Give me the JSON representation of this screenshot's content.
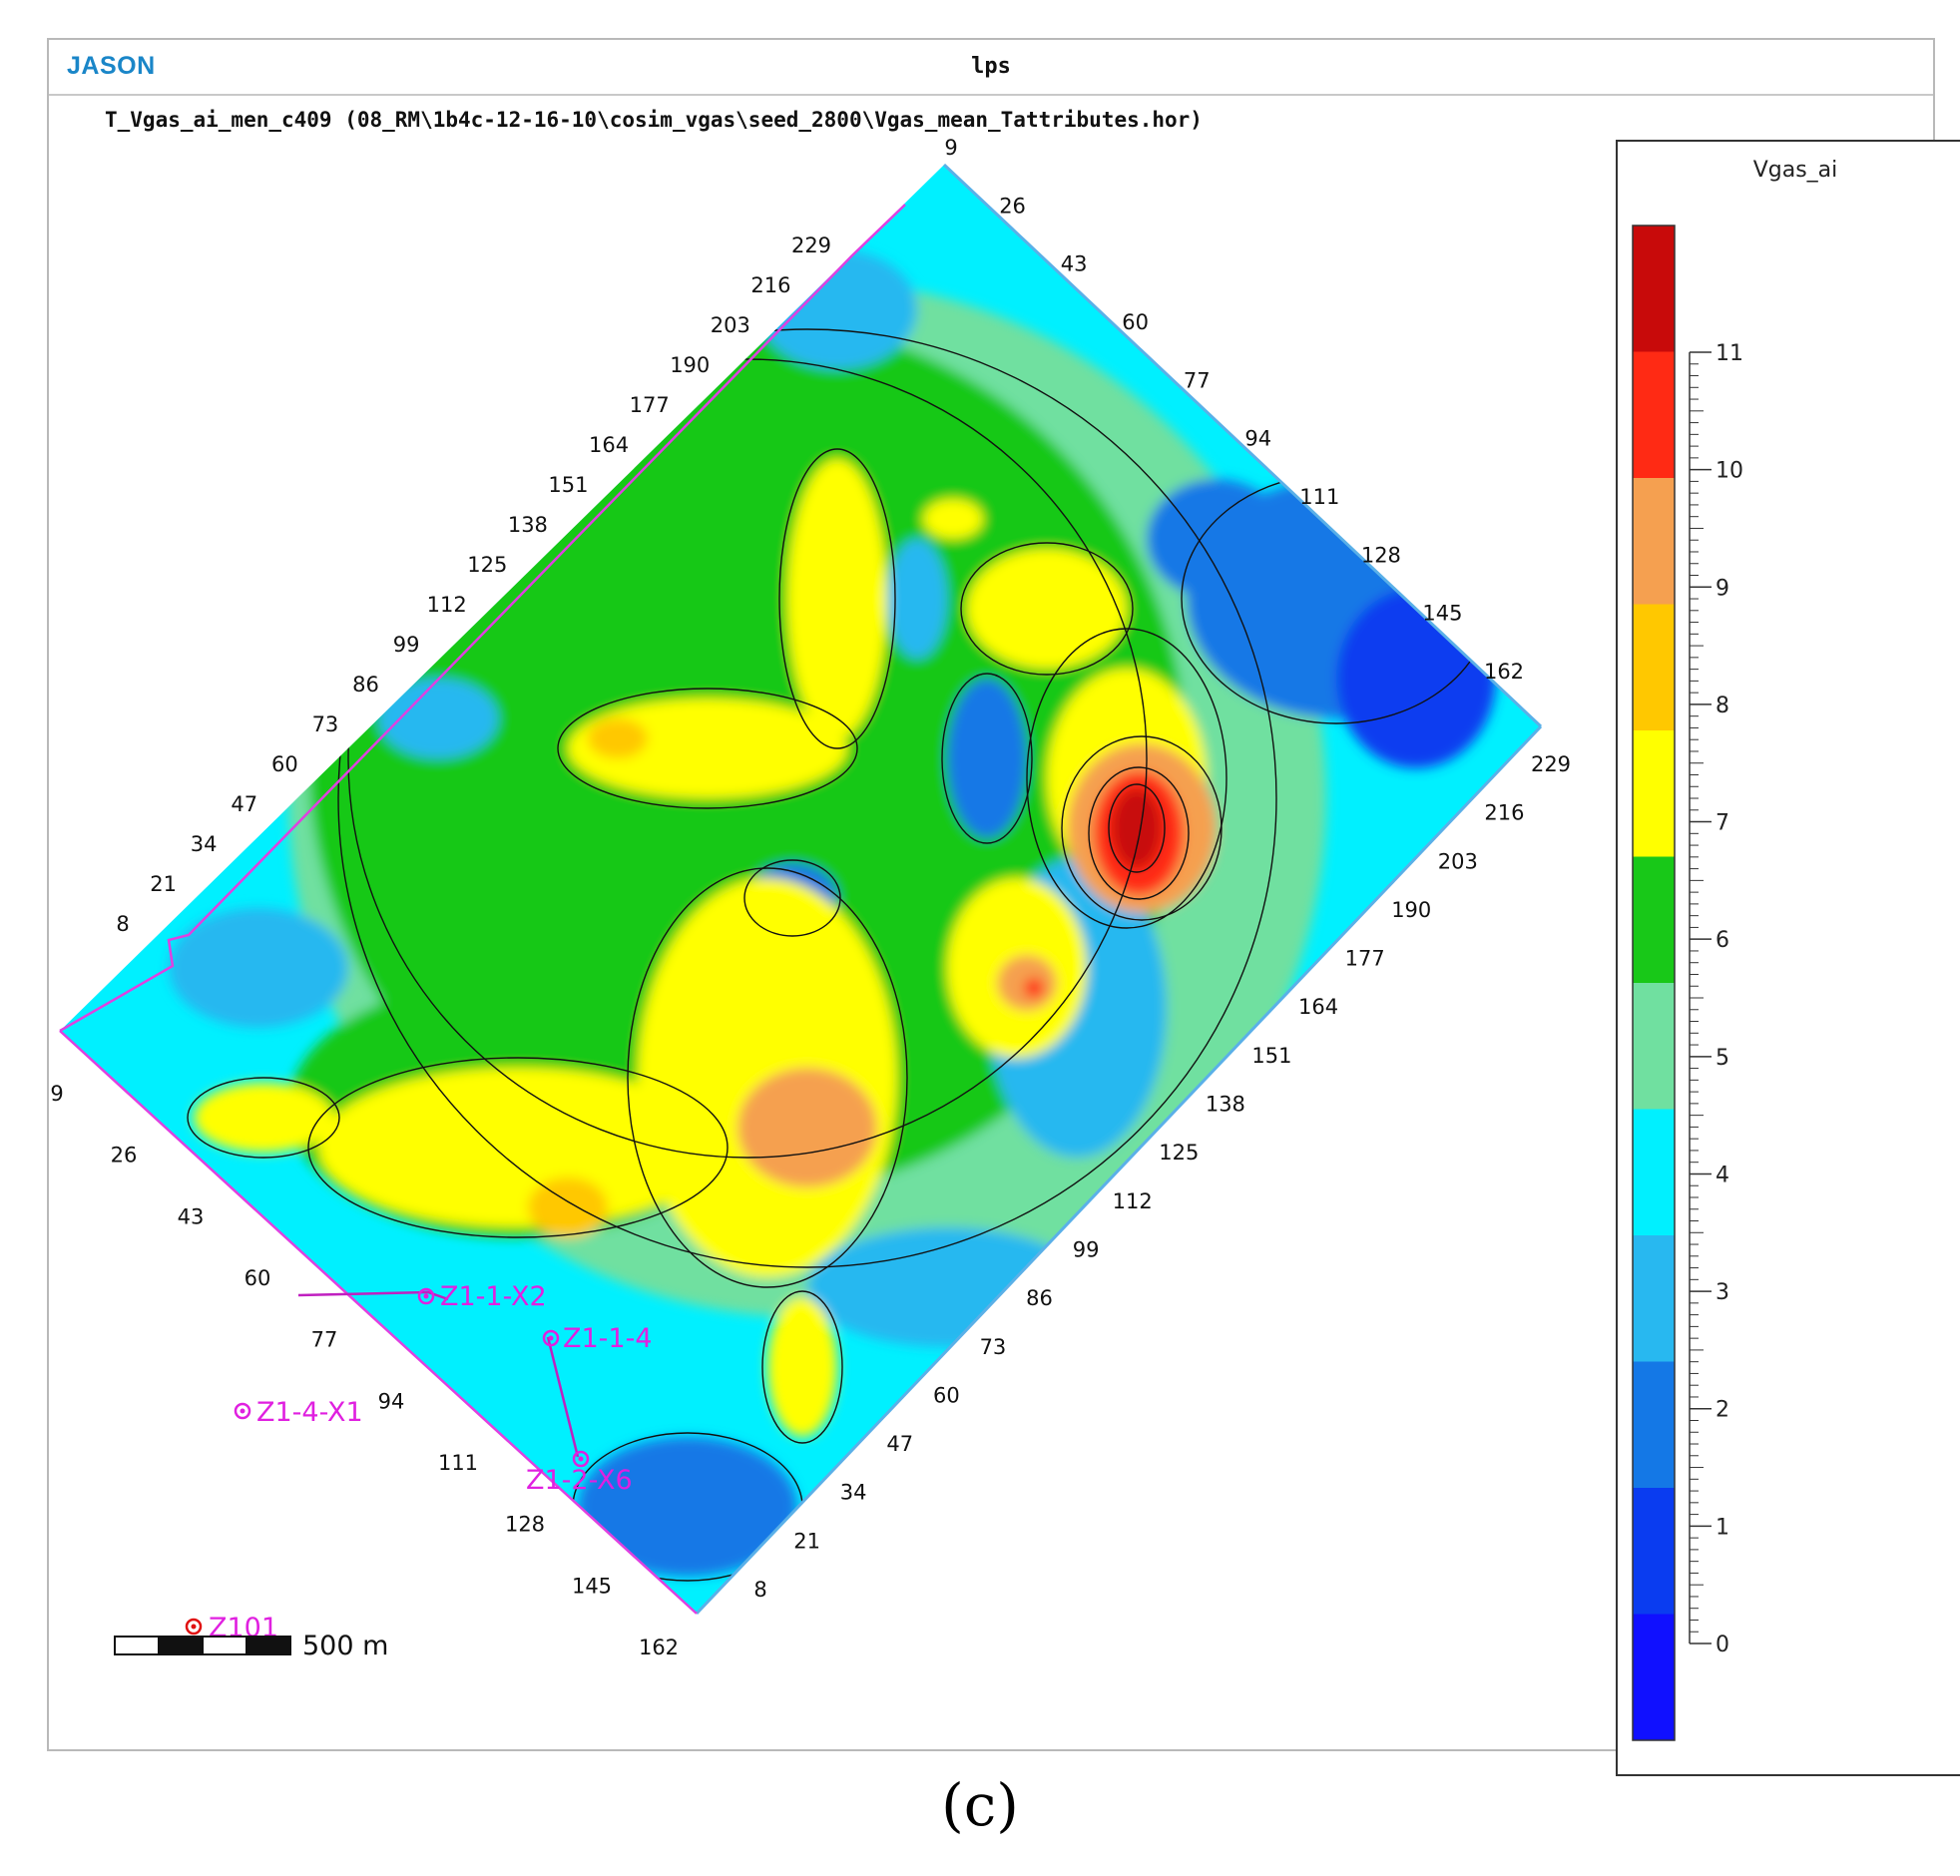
{
  "header": {
    "logo": "JASON",
    "window_title": "lps"
  },
  "map": {
    "title": "T_Vgas_ai_men_c409 (08_RM\\1b4c-12-16-10\\cosim_vgas\\seed_2800\\Vgas_mean_Tattributes.hor)",
    "grid_labels": {
      "upper_left_edge": [
        "8",
        "21",
        "34",
        "47",
        "60",
        "73",
        "86",
        "99",
        "112",
        "125",
        "138",
        "151",
        "164",
        "177",
        "190",
        "203",
        "216",
        "229"
      ],
      "upper_right_edge": [
        "9",
        "26",
        "43",
        "60",
        "77",
        "94",
        "111",
        "128",
        "145",
        "162"
      ],
      "lower_right_edge": [
        "229",
        "216",
        "203",
        "190",
        "177",
        "164",
        "151",
        "138",
        "125",
        "112",
        "99",
        "86",
        "73",
        "60",
        "47",
        "34",
        "21",
        "8"
      ],
      "lower_left_edge": [
        "9",
        "26",
        "43",
        "60",
        "77",
        "94",
        "111",
        "128",
        "145",
        "162"
      ]
    },
    "wells": [
      {
        "name": "Z1-1-X2"
      },
      {
        "name": "Z1-1-4"
      },
      {
        "name": "Z1-4-X1"
      },
      {
        "name": "Z1-2-X6"
      },
      {
        "name": "Z101"
      }
    ],
    "scale_bar": {
      "label": "500 m"
    },
    "colors": {
      "low": "#1010ff",
      "high": "#c80000",
      "boundary": "#e040e0",
      "outline": "#5ab0e8"
    }
  },
  "legend": {
    "title": "Vgas_ai",
    "tick_labels": [
      "11",
      "10",
      "9",
      "8",
      "7",
      "6",
      "5",
      "4",
      "3",
      "2",
      "1",
      "0"
    ],
    "color_bands": [
      "#c80a0a",
      "#ff2a14",
      "#f5a050",
      "#ffc800",
      "#ffff00",
      "#18c818",
      "#70e0a0",
      "#00f0ff",
      "#28b8f0",
      "#1478e6",
      "#0a3cf0",
      "#1010ff"
    ]
  },
  "caption": "(c)"
}
